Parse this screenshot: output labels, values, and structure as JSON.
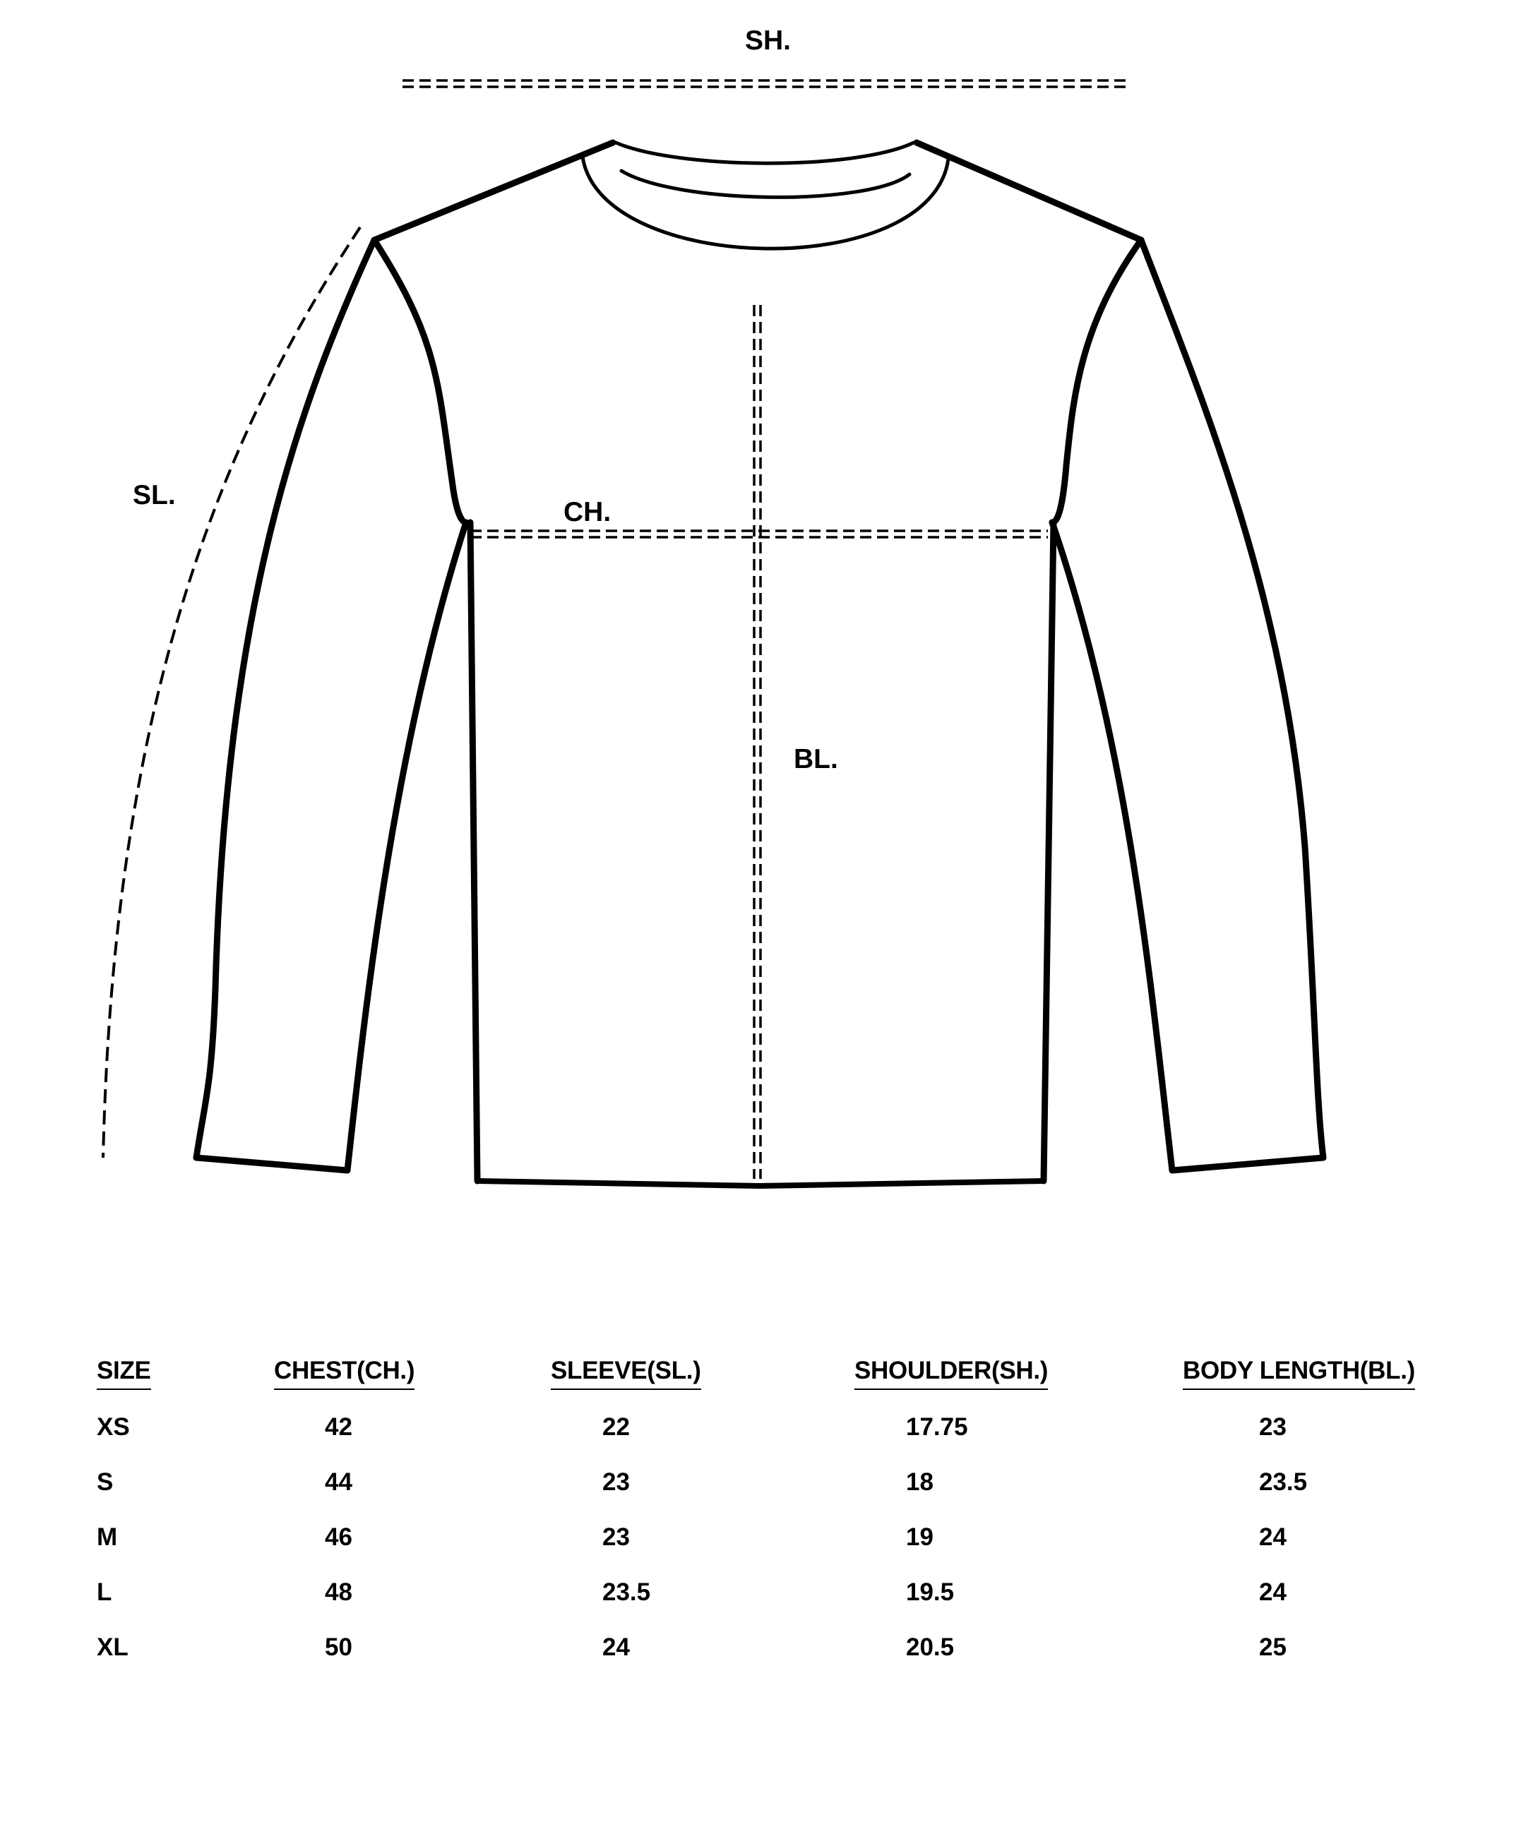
{
  "diagram": {
    "labels": {
      "shoulder": "SH.",
      "sleeve": "SL.",
      "chest": "CH.",
      "body_length": "BL."
    }
  },
  "table": {
    "headers": [
      "SIZE",
      "CHEST(CH.)",
      "SLEEVE(SL.)",
      "SHOULDER(SH.)",
      "BODY LENGTH(BL.)"
    ],
    "rows": [
      [
        "XS",
        "42",
        "22",
        "17.75",
        "23"
      ],
      [
        "S",
        "44",
        "23",
        "18",
        "23.5"
      ],
      [
        "M",
        "46",
        "23",
        "19",
        "24"
      ],
      [
        "L",
        "48",
        "23.5",
        "19.5",
        "24"
      ],
      [
        "XL",
        "50",
        "24",
        "20.5",
        "25"
      ]
    ]
  }
}
